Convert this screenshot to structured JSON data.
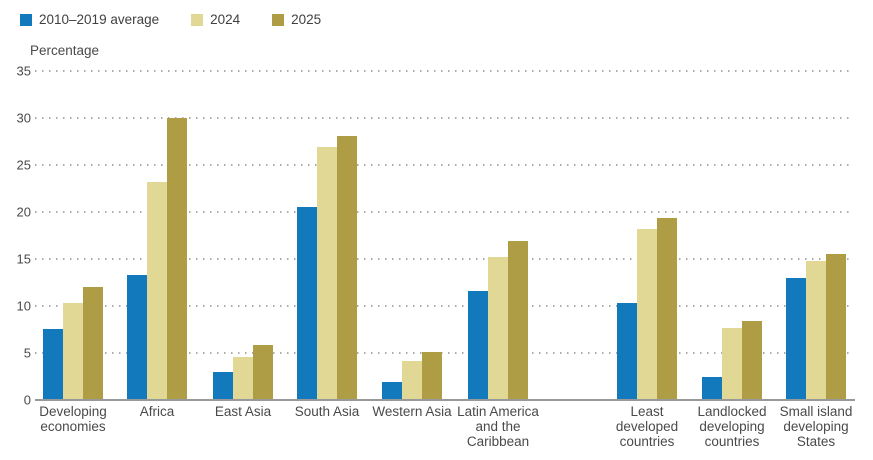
{
  "chart_data": {
    "type": "bar",
    "title": "",
    "ylabel": "Percentage",
    "xlabel": "",
    "ylim": [
      0,
      35
    ],
    "yticks": [
      0,
      5,
      10,
      15,
      20,
      25,
      30,
      35
    ],
    "grid": "horizontal-dotted",
    "legend_position": "top-left",
    "categories": [
      {
        "label": "Developing economies",
        "lines": [
          "Developing",
          "economies"
        ]
      },
      {
        "label": "Africa",
        "lines": [
          "Africa"
        ]
      },
      {
        "label": "East Asia",
        "lines": [
          "East Asia"
        ]
      },
      {
        "label": "South Asia",
        "lines": [
          "South Asia"
        ]
      },
      {
        "label": "Western Asia",
        "lines": [
          "Western Asia"
        ]
      },
      {
        "label": "Latin America and the Caribbean",
        "lines": [
          "Latin America",
          "and the",
          "Caribbean"
        ]
      },
      {
        "label": "Least developed countries",
        "lines": [
          "Least",
          "developed",
          "countries"
        ]
      },
      {
        "label": "Landlocked developing countries",
        "lines": [
          "Landlocked",
          "developing",
          "countries"
        ]
      },
      {
        "label": "Small island developing States",
        "lines": [
          "Small island",
          "developing",
          "States"
        ]
      }
    ],
    "series": [
      {
        "name": "2010–2019 average",
        "color": "#1279bd",
        "values": [
          7.5,
          13.3,
          3.0,
          20.5,
          1.9,
          11.6,
          10.3,
          2.4,
          13.0
        ]
      },
      {
        "name": "2024",
        "color": "#e0d894",
        "values": [
          10.3,
          23.2,
          4.6,
          26.9,
          4.1,
          15.2,
          18.2,
          7.7,
          14.8
        ]
      },
      {
        "name": "2025",
        "color": "#ae9d45",
        "values": [
          12.0,
          30.0,
          5.8,
          28.1,
          5.1,
          16.9,
          19.4,
          8.4,
          15.5
        ]
      }
    ],
    "colors": {
      "grid": "#acacac",
      "axis_line": "#97999b",
      "text": "#4a4a4c"
    }
  }
}
